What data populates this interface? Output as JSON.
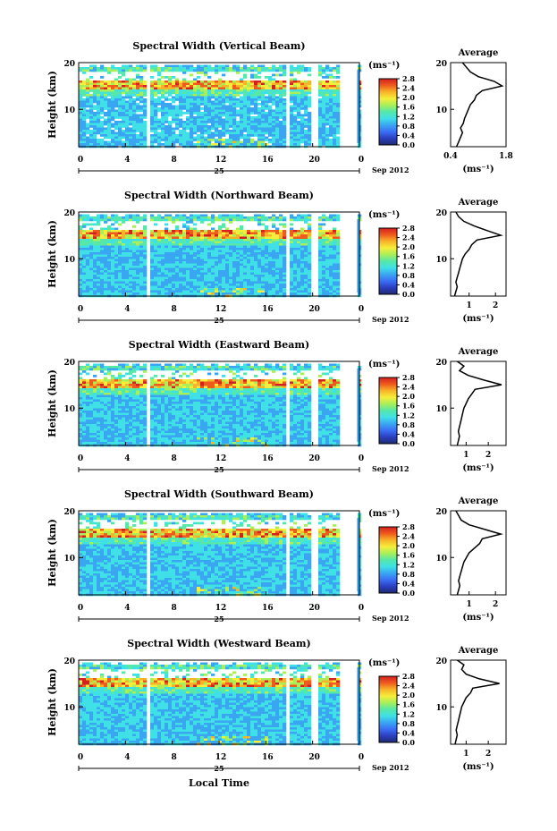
{
  "colors": {
    "colorbar_stops": [
      "#1e2a6e",
      "#2b3fbf",
      "#3b6ef5",
      "#3aa6f2",
      "#3fe0e6",
      "#55e8a8",
      "#a8ef5a",
      "#f5ee3a",
      "#f7b428",
      "#ef5a1e",
      "#d42020"
    ],
    "frame": "#000000",
    "gap": "#ffffff"
  },
  "shared": {
    "x_axis_label": "Local Time",
    "date_label": "Sep 2012",
    "day_label": "25",
    "y_axis_label": "Height (km)",
    "units_label": "(ms⁻¹)",
    "avg_title": "Average",
    "avg_xlabel": "(ms⁻¹)"
  },
  "chart_data": [
    {
      "type": "heatmap",
      "title": "Spectral Width (Vertical Beam)",
      "xlabel": "Local Time",
      "ylabel": "Height (km)",
      "x_ticks": [
        "0",
        "4",
        "8",
        "12",
        "16",
        "20",
        "0"
      ],
      "y_ticks": [
        "20",
        "10"
      ],
      "xlim": [
        0,
        24
      ],
      "ylim": [
        2,
        20
      ],
      "colorbar": {
        "unit": "(ms⁻¹)",
        "ticks": [
          "2.8",
          "2.4",
          "2.0",
          "1.6",
          "1.2",
          "0.8",
          "0.4",
          "0.0"
        ],
        "range": [
          0.0,
          2.8
        ]
      },
      "average_profile": {
        "title": "Average",
        "xlabel": "(ms⁻¹)",
        "x_ticks": [
          "0.4",
          "1.8"
        ],
        "y_ticks": [
          "20",
          "10"
        ],
        "xlim": [
          0.4,
          1.8
        ],
        "height_km": [
          2,
          3,
          4,
          5,
          6,
          7,
          8,
          9,
          10,
          11,
          12,
          13,
          14,
          15,
          16,
          17,
          18,
          19,
          20
        ],
        "width_ms": [
          0.55,
          0.6,
          0.65,
          0.7,
          0.65,
          0.72,
          0.75,
          0.8,
          0.85,
          0.9,
          1.0,
          1.05,
          1.2,
          1.7,
          1.5,
          1.1,
          0.9,
          0.8,
          0.7
        ]
      }
    },
    {
      "type": "heatmap",
      "title": "Spectral Width (Northward Beam)",
      "xlabel": "Local Time",
      "ylabel": "Height (km)",
      "x_ticks": [
        "0",
        "4",
        "8",
        "12",
        "16",
        "20",
        "0"
      ],
      "y_ticks": [
        "20",
        "10"
      ],
      "xlim": [
        0,
        24
      ],
      "ylim": [
        2,
        20
      ],
      "colorbar": {
        "unit": "(ms⁻¹)",
        "ticks": [
          "2.8",
          "2.4",
          "2.0",
          "1.6",
          "1.2",
          "0.8",
          "0.4",
          "0.0"
        ],
        "range": [
          0.0,
          2.8
        ]
      },
      "average_profile": {
        "title": "Average",
        "xlabel": "(ms⁻¹)",
        "x_ticks": [
          "1",
          "2"
        ],
        "y_ticks": [
          "20",
          "10"
        ],
        "xlim": [
          0.3,
          2.4
        ],
        "height_km": [
          2,
          3,
          4,
          5,
          6,
          7,
          8,
          9,
          10,
          11,
          12,
          13,
          14,
          15,
          16,
          17,
          18,
          19,
          20
        ],
        "width_ms": [
          0.45,
          0.5,
          0.55,
          0.5,
          0.55,
          0.6,
          0.65,
          0.7,
          0.75,
          0.85,
          1.0,
          1.1,
          1.3,
          2.2,
          1.7,
          1.2,
          0.8,
          0.6,
          0.5
        ]
      }
    },
    {
      "type": "heatmap",
      "title": "Spectral Width (Eastward Beam)",
      "xlabel": "Local Time",
      "ylabel": "Height (km)",
      "x_ticks": [
        "0",
        "4",
        "8",
        "12",
        "16",
        "20",
        "0"
      ],
      "y_ticks": [
        "20",
        "10"
      ],
      "xlim": [
        0,
        24
      ],
      "ylim": [
        2,
        20
      ],
      "colorbar": {
        "unit": "(ms⁻¹)",
        "ticks": [
          "2.8",
          "2.4",
          "2.0",
          "1.6",
          "1.2",
          "0.8",
          "0.4",
          "0.0"
        ],
        "range": [
          0.0,
          2.8
        ]
      },
      "average_profile": {
        "title": "Average",
        "xlabel": "(ms⁻¹)",
        "x_ticks": [
          "1",
          "2"
        ],
        "y_ticks": [
          "20",
          "10"
        ],
        "xlim": [
          0.3,
          2.8
        ],
        "height_km": [
          2,
          3,
          4,
          5,
          6,
          7,
          8,
          9,
          10,
          11,
          12,
          13,
          14,
          15,
          16,
          17,
          18,
          19,
          20
        ],
        "width_ms": [
          0.6,
          0.65,
          0.7,
          0.65,
          0.7,
          0.75,
          0.8,
          0.85,
          0.9,
          1.0,
          1.1,
          1.25,
          1.4,
          2.6,
          1.8,
          1.1,
          0.7,
          0.9,
          0.6
        ]
      }
    },
    {
      "type": "heatmap",
      "title": "Spectral Width (Southward Beam)",
      "xlabel": "Local Time",
      "ylabel": "Height (km)",
      "x_ticks": [
        "0",
        "4",
        "8",
        "12",
        "16",
        "20",
        "0"
      ],
      "y_ticks": [
        "20",
        "10"
      ],
      "xlim": [
        0,
        24
      ],
      "ylim": [
        2,
        20
      ],
      "colorbar": {
        "unit": "(ms⁻¹)",
        "ticks": [
          "2.8",
          "2.4",
          "2.0",
          "1.6",
          "1.2",
          "0.8",
          "0.4",
          "0.0"
        ],
        "range": [
          0.0,
          2.8
        ]
      },
      "average_profile": {
        "title": "Average",
        "xlabel": "(ms⁻¹)",
        "x_ticks": [
          "1",
          "2"
        ],
        "y_ticks": [
          "20",
          "10"
        ],
        "xlim": [
          0.3,
          2.4
        ],
        "height_km": [
          2,
          3,
          4,
          5,
          6,
          7,
          8,
          9,
          10,
          11,
          12,
          13,
          14,
          15,
          16,
          17,
          18,
          19,
          20
        ],
        "width_ms": [
          0.55,
          0.6,
          0.65,
          0.6,
          0.65,
          0.7,
          0.75,
          0.8,
          0.9,
          1.0,
          1.2,
          1.4,
          1.5,
          2.2,
          1.6,
          1.0,
          0.7,
          0.6,
          0.5
        ]
      }
    },
    {
      "type": "heatmap",
      "title": "Spectral Width (Westward Beam)",
      "xlabel": "Local Time",
      "ylabel": "Height (km)",
      "x_ticks": [
        "0",
        "4",
        "8",
        "12",
        "16",
        "20",
        "0"
      ],
      "y_ticks": [
        "20",
        "10"
      ],
      "xlim": [
        0,
        24
      ],
      "ylim": [
        2,
        20
      ],
      "colorbar": {
        "unit": "(ms⁻¹)",
        "ticks": [
          "2.8",
          "2.4",
          "2.0",
          "1.6",
          "1.2",
          "0.8",
          "0.4",
          "0.0"
        ],
        "range": [
          0.0,
          2.8
        ]
      },
      "average_profile": {
        "title": "Average",
        "xlabel": "(ms⁻¹)",
        "x_ticks": [
          "1",
          "2"
        ],
        "y_ticks": [
          "20",
          "10"
        ],
        "xlim": [
          0.3,
          2.8
        ],
        "height_km": [
          2,
          3,
          4,
          5,
          6,
          7,
          8,
          9,
          10,
          11,
          12,
          13,
          14,
          15,
          16,
          17,
          18,
          19,
          20
        ],
        "width_ms": [
          0.5,
          0.55,
          0.6,
          0.55,
          0.6,
          0.65,
          0.7,
          0.75,
          0.8,
          0.9,
          1.0,
          1.2,
          1.3,
          2.5,
          1.6,
          1.0,
          0.8,
          0.9,
          0.6
        ]
      }
    }
  ]
}
